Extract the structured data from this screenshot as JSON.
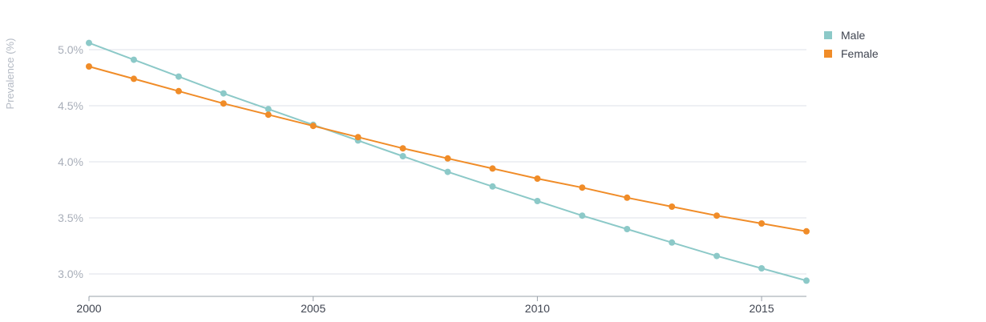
{
  "chart_data": {
    "type": "line",
    "x": [
      2000,
      2001,
      2002,
      2003,
      2004,
      2005,
      2006,
      2007,
      2008,
      2009,
      2010,
      2011,
      2012,
      2013,
      2014,
      2015,
      2016
    ],
    "series": [
      {
        "name": "Male",
        "color": "#8cc9c8",
        "values": [
          5.06,
          4.91,
          4.76,
          4.61,
          4.47,
          4.33,
          4.19,
          4.05,
          3.91,
          3.78,
          3.65,
          3.52,
          3.4,
          3.28,
          3.16,
          3.05,
          2.94
        ]
      },
      {
        "name": "Female",
        "color": "#f08c28",
        "values": [
          4.85,
          4.74,
          4.63,
          4.52,
          4.42,
          4.32,
          4.22,
          4.12,
          4.03,
          3.94,
          3.85,
          3.77,
          3.68,
          3.6,
          3.52,
          3.45,
          3.38
        ]
      }
    ],
    "ylabel": "Prevalence (%)",
    "xlabel": "",
    "ylim": [
      2.8,
      5.13
    ],
    "xlim": [
      2000,
      2016
    ],
    "y_ticks": [
      3.0,
      3.5,
      4.0,
      4.5,
      5.0
    ],
    "y_tick_labels": [
      "3.0%",
      "3.5%",
      "4.0%",
      "4.5%",
      "5.0%"
    ],
    "x_ticks": [
      2000,
      2005,
      2010,
      2015
    ],
    "x_tick_labels": [
      "2000",
      "2005",
      "2010",
      "2015"
    ],
    "grid": true,
    "legend_position": "top-right",
    "colors": {
      "grid": "#dde1e8",
      "axis": "#9aa0aa"
    }
  }
}
